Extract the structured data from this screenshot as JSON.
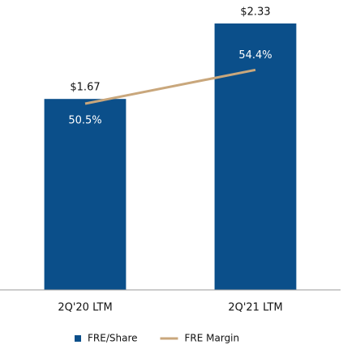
{
  "chart_data": {
    "type": "bar",
    "categories": [
      "2Q'20 LTM",
      "2Q'21 LTM"
    ],
    "series": [
      {
        "name": "FRE/Share",
        "type": "bar",
        "color": "#0b4f8a",
        "values": [
          1.67,
          2.33
        ],
        "value_labels": [
          "$1.67",
          "$2.33"
        ]
      },
      {
        "name": "FRE Margin",
        "type": "line",
        "axis": "y2",
        "color": "#c9a77c",
        "values": [
          50.5,
          54.4
        ],
        "value_labels": [
          "50.5%",
          "54.4%"
        ]
      }
    ],
    "ylim": [
      0,
      2.5
    ],
    "y2lim": [
      29,
      62
    ],
    "legend": "bottom"
  }
}
